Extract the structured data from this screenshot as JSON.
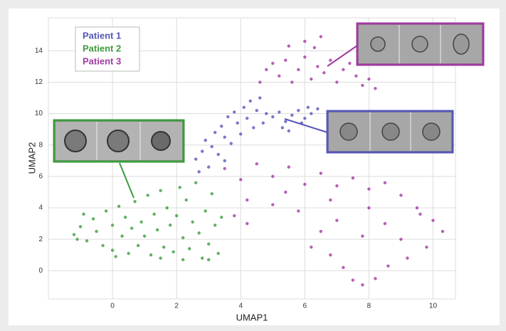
{
  "chart_data": {
    "type": "scatter",
    "xlabel": "UMAP1",
    "ylabel": "UMAP2",
    "xlim": [
      -2,
      10.7
    ],
    "ylim": [
      -1.8,
      16.1
    ],
    "xticks": [
      0,
      2,
      4,
      6,
      8,
      10
    ],
    "yticks": [
      0,
      2,
      4,
      6,
      8,
      10,
      12,
      14
    ],
    "grid": true,
    "legend": "upper left",
    "series": [
      {
        "name": "Patient 1",
        "color": "#5757b8",
        "x": [
          2.6,
          2.8,
          2.9,
          3.1,
          3.2,
          3.3,
          3.4,
          3.5,
          3.6,
          3.7,
          3.8,
          3.9,
          4.0,
          4.1,
          4.2,
          4.3,
          4.4,
          4.5,
          4.6,
          4.8,
          5.0,
          5.2,
          5.4,
          5.6,
          5.8,
          6.0,
          6.2,
          6.4,
          5.3,
          5.5,
          3.0,
          2.7,
          3.5,
          4.7,
          5.9,
          6.1
        ],
        "y": [
          7.1,
          7.6,
          8.3,
          7.9,
          8.8,
          7.4,
          9.2,
          8.5,
          9.8,
          8.1,
          10.1,
          9.4,
          8.7,
          10.4,
          9.7,
          10.8,
          9.1,
          10.2,
          11.0,
          10.0,
          9.8,
          10.1,
          9.5,
          9.9,
          10.2,
          9.7,
          10.0,
          10.3,
          9.1,
          8.9,
          6.6,
          6.3,
          7.0,
          9.4,
          9.4,
          10.4
        ]
      },
      {
        "name": "Patient 2",
        "color": "#3c9c3c",
        "x": [
          -1.2,
          -1,
          -0.8,
          -0.6,
          -0.5,
          -0.3,
          -0.2,
          0,
          0,
          0.2,
          0.3,
          0.4,
          0.5,
          0.6,
          0.7,
          0.8,
          0.9,
          1,
          1.1,
          1.2,
          1.3,
          1.4,
          1.5,
          1.6,
          1.7,
          1.8,
          1.9,
          2,
          2.1,
          2.2,
          2.3,
          2.4,
          2.5,
          2.6,
          2.7,
          2.8,
          2.9,
          3,
          3.1,
          3.2,
          3.3,
          3.4,
          -0.9,
          0.1,
          1.5,
          2.2,
          3,
          -1.1
        ],
        "y": [
          2.3,
          2.8,
          1.9,
          3.3,
          2.5,
          1.6,
          3.8,
          2.9,
          1.3,
          4.1,
          2.2,
          3.4,
          1.1,
          2.7,
          4.4,
          1.6,
          3.1,
          2.2,
          4.8,
          1.0,
          3.6,
          2.6,
          5.1,
          1.5,
          4.0,
          2.9,
          1.2,
          3.5,
          5.3,
          2.1,
          4.5,
          1.4,
          3.1,
          5.6,
          2.4,
          0.8,
          3.8,
          1.7,
          4.9,
          2.9,
          1.1,
          3.4,
          3.6,
          0.9,
          0.8,
          0.7,
          0.7,
          2.0
        ]
      },
      {
        "name": "Patient 3",
        "color": "#a23aa2",
        "x": [
          4.6,
          4.8,
          5.0,
          5.2,
          5.4,
          5.6,
          5.8,
          6.0,
          6.2,
          6.4,
          6.6,
          6.8,
          7.0,
          7.2,
          7.4,
          7.6,
          7.8,
          8.0,
          8.2,
          5.5,
          6.0,
          6.5,
          6.3,
          3.5,
          4.0,
          4.5,
          5.0,
          5.5,
          6.0,
          6.5,
          7.0,
          7.5,
          8.0,
          8.5,
          9.0,
          9.5,
          10.0,
          10.3,
          4.2,
          5.0,
          5.8,
          6.5,
          6.2,
          6.8,
          7.2,
          7.5,
          7.8,
          8.2,
          8.6,
          9.2,
          9.8,
          7.0,
          7.8,
          8.5,
          9.0,
          8.0,
          6.8,
          3.8,
          4.2,
          5.4,
          9.6
        ],
        "y": [
          12.0,
          12.8,
          13.2,
          12.4,
          13.4,
          12.0,
          12.8,
          13.6,
          12.2,
          13.0,
          12.6,
          13.4,
          12.0,
          12.8,
          13.2,
          12.4,
          11.8,
          12.2,
          11.6,
          14.3,
          14.6,
          14.9,
          14.2,
          6.5,
          5.8,
          6.8,
          6.0,
          6.6,
          5.5,
          6.2,
          5.4,
          5.9,
          5.2,
          5.6,
          4.8,
          4.0,
          3.2,
          2.5,
          4.5,
          4.2,
          3.8,
          2.5,
          1.5,
          1.0,
          0.2,
          -0.6,
          -0.9,
          -0.5,
          0.3,
          0.8,
          1.5,
          3.2,
          2.2,
          3.0,
          2.0,
          4.0,
          4.5,
          3.5,
          3.0,
          5.0,
          3.6
        ]
      }
    ]
  }
}
